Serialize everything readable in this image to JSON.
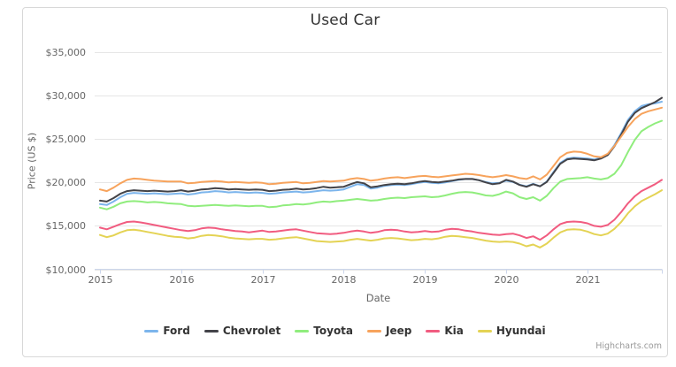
{
  "title": "Used Car",
  "credit": "Highcharts.com",
  "xaxis": {
    "title": "Date",
    "tick_labels": [
      "2015",
      "2016",
      "2017",
      "2018",
      "2019",
      "2020",
      "2021"
    ]
  },
  "yaxis": {
    "title": "Price (US $)",
    "tick_labels": [
      "$10,000",
      "$15,000",
      "$20,000",
      "$25,000",
      "$30,000",
      "$35,000"
    ],
    "tick_values": [
      10000,
      15000,
      20000,
      25000,
      30000,
      35000
    ]
  },
  "chart_data": {
    "type": "line",
    "title": "Used Car",
    "xlabel": "Date",
    "ylabel": "Price (US $)",
    "x_unit": "month",
    "x_start": "2015-01",
    "x_end": "2021-12",
    "xtick_labels": [
      "2015",
      "2016",
      "2017",
      "2018",
      "2019",
      "2020",
      "2021"
    ],
    "ylim": [
      10000,
      35000
    ],
    "grid": true,
    "legend_position": "bottom",
    "grid_color": "#e6e6e6",
    "axis_color": "#ccd6eb",
    "series": [
      {
        "name": "Ford",
        "color": "#7cb5ec",
        "values": [
          17500,
          17400,
          17800,
          18300,
          18700,
          18800,
          18750,
          18700,
          18750,
          18700,
          18650,
          18700,
          18750,
          18600,
          18700,
          18850,
          18900,
          19000,
          18950,
          18850,
          18900,
          18850,
          18800,
          18850,
          18800,
          18700,
          18750,
          18850,
          18900,
          18950,
          18850,
          18900,
          19000,
          19100,
          19050,
          19100,
          19200,
          19500,
          19800,
          19700,
          19300,
          19400,
          19600,
          19700,
          19750,
          19700,
          19800,
          19950,
          20050,
          19950,
          19900,
          20000,
          20150,
          20300,
          20400,
          20400,
          20250,
          20050,
          19900,
          19950,
          20200,
          20050,
          19750,
          19550,
          19850,
          19550,
          20100,
          21200,
          22250,
          22750,
          22850,
          22800,
          22750,
          22650,
          22850,
          23250,
          24300,
          25700,
          27200,
          28200,
          28800,
          29000,
          29100,
          29300
        ]
      },
      {
        "name": "Chevrolet",
        "color": "#434348",
        "values": [
          17900,
          17800,
          18200,
          18700,
          19000,
          19100,
          19050,
          19000,
          19050,
          19000,
          18950,
          19000,
          19100,
          18950,
          19050,
          19200,
          19250,
          19350,
          19300,
          19200,
          19250,
          19200,
          19150,
          19200,
          19150,
          19000,
          19050,
          19150,
          19200,
          19300,
          19200,
          19250,
          19350,
          19500,
          19400,
          19450,
          19500,
          19800,
          20050,
          19900,
          19450,
          19550,
          19700,
          19800,
          19850,
          19800,
          19900,
          20050,
          20150,
          20050,
          20000,
          20100,
          20200,
          20350,
          20400,
          20400,
          20250,
          20000,
          19800,
          19900,
          20300,
          20100,
          19700,
          19500,
          19800,
          19550,
          20050,
          21100,
          22150,
          22650,
          22750,
          22700,
          22650,
          22550,
          22750,
          23150,
          24150,
          25500,
          27000,
          28000,
          28550,
          28900,
          29250,
          29750
        ]
      },
      {
        "name": "Toyota",
        "color": "#90ed7d",
        "values": [
          17100,
          16900,
          17200,
          17600,
          17800,
          17850,
          17800,
          17700,
          17750,
          17700,
          17600,
          17550,
          17500,
          17300,
          17250,
          17300,
          17350,
          17400,
          17350,
          17300,
          17350,
          17300,
          17250,
          17300,
          17300,
          17150,
          17200,
          17350,
          17400,
          17500,
          17450,
          17550,
          17700,
          17800,
          17750,
          17850,
          17900,
          18000,
          18100,
          18000,
          17900,
          17950,
          18100,
          18200,
          18250,
          18200,
          18300,
          18350,
          18400,
          18300,
          18350,
          18500,
          18700,
          18850,
          18900,
          18850,
          18700,
          18500,
          18450,
          18650,
          18950,
          18750,
          18300,
          18100,
          18300,
          17900,
          18450,
          19350,
          20100,
          20400,
          20450,
          20500,
          20600,
          20450,
          20350,
          20500,
          21000,
          22000,
          23500,
          24900,
          25900,
          26400,
          26800,
          27100
        ]
      },
      {
        "name": "Jeep",
        "color": "#f7a35c",
        "values": [
          19200,
          19000,
          19400,
          19900,
          20300,
          20450,
          20400,
          20300,
          20200,
          20150,
          20100,
          20100,
          20100,
          19900,
          19950,
          20050,
          20100,
          20150,
          20100,
          20000,
          20050,
          20000,
          19950,
          20000,
          19950,
          19800,
          19850,
          19950,
          20000,
          20050,
          19900,
          19950,
          20050,
          20150,
          20100,
          20150,
          20200,
          20400,
          20500,
          20400,
          20200,
          20300,
          20450,
          20550,
          20600,
          20500,
          20600,
          20700,
          20750,
          20650,
          20600,
          20700,
          20800,
          20900,
          21000,
          20950,
          20850,
          20700,
          20600,
          20700,
          20850,
          20700,
          20500,
          20400,
          20700,
          20350,
          20900,
          21900,
          22900,
          23400,
          23550,
          23500,
          23300,
          23000,
          22900,
          23300,
          24200,
          25300,
          26400,
          27300,
          27900,
          28200,
          28400,
          28600
        ]
      },
      {
        "name": "Kia",
        "color": "#f15c80",
        "values": [
          14800,
          14600,
          14900,
          15200,
          15450,
          15500,
          15400,
          15250,
          15100,
          14950,
          14800,
          14650,
          14500,
          14400,
          14500,
          14700,
          14800,
          14750,
          14600,
          14500,
          14400,
          14350,
          14250,
          14350,
          14450,
          14300,
          14350,
          14450,
          14550,
          14600,
          14450,
          14300,
          14150,
          14100,
          14050,
          14100,
          14200,
          14350,
          14450,
          14350,
          14200,
          14300,
          14500,
          14550,
          14500,
          14350,
          14250,
          14300,
          14400,
          14300,
          14350,
          14550,
          14650,
          14600,
          14450,
          14350,
          14200,
          14100,
          14000,
          13950,
          14050,
          14100,
          13900,
          13600,
          13800,
          13400,
          13900,
          14600,
          15200,
          15450,
          15500,
          15450,
          15300,
          15000,
          14900,
          15100,
          15700,
          16600,
          17600,
          18400,
          19000,
          19400,
          19800,
          20300
        ]
      },
      {
        "name": "Hyundai",
        "color": "#e4d354",
        "values": [
          13950,
          13700,
          13900,
          14250,
          14500,
          14550,
          14450,
          14300,
          14150,
          14000,
          13850,
          13750,
          13700,
          13550,
          13650,
          13850,
          13950,
          13900,
          13800,
          13650,
          13550,
          13500,
          13450,
          13500,
          13500,
          13400,
          13450,
          13550,
          13650,
          13700,
          13550,
          13400,
          13250,
          13200,
          13150,
          13200,
          13250,
          13400,
          13500,
          13400,
          13300,
          13400,
          13550,
          13600,
          13550,
          13450,
          13350,
          13400,
          13500,
          13450,
          13550,
          13750,
          13850,
          13800,
          13700,
          13600,
          13450,
          13300,
          13200,
          13150,
          13200,
          13150,
          12950,
          12650,
          12850,
          12500,
          12950,
          13650,
          14250,
          14550,
          14600,
          14550,
          14350,
          14050,
          13900,
          14100,
          14650,
          15450,
          16450,
          17250,
          17850,
          18250,
          18650,
          19100
        ]
      }
    ]
  }
}
